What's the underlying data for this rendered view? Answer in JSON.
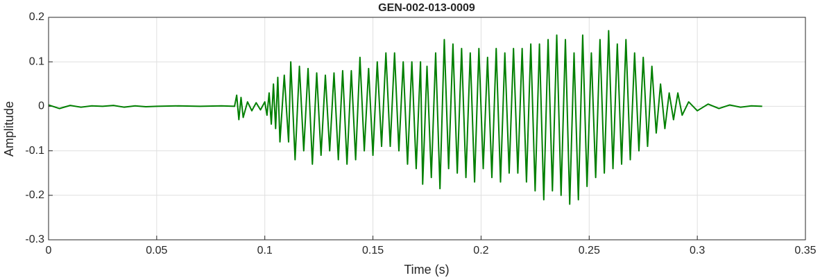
{
  "chart_data": {
    "type": "line",
    "title": "GEN-002-013-0009",
    "xlabel": "Time (s)",
    "ylabel": "Amplitude",
    "color": "#007f00",
    "grid": true,
    "xlim": [
      0,
      0.35
    ],
    "ylim": [
      -0.3,
      0.2
    ],
    "xticks": [
      0,
      0.05,
      0.1,
      0.15,
      0.2,
      0.25,
      0.3,
      0.35
    ],
    "yticks": [
      -0.3,
      -0.2,
      -0.1,
      0,
      0.1,
      0.2
    ],
    "x": [
      0,
      0.005,
      0.01,
      0.015,
      0.02,
      0.025,
      0.03,
      0.035,
      0.04,
      0.045,
      0.05,
      0.06,
      0.07,
      0.08,
      0.086,
      0.087,
      0.088,
      0.089,
      0.09,
      0.092,
      0.094,
      0.096,
      0.098,
      0.1,
      0.101,
      0.102,
      0.103,
      0.104,
      0.105,
      0.106,
      0.107,
      0.109,
      0.111,
      0.112,
      0.114,
      0.116,
      0.118,
      0.12,
      0.122,
      0.124,
      0.126,
      0.128,
      0.13,
      0.132,
      0.134,
      0.136,
      0.138,
      0.14,
      0.142,
      0.144,
      0.146,
      0.148,
      0.15,
      0.152,
      0.154,
      0.156,
      0.158,
      0.16,
      0.162,
      0.164,
      0.166,
      0.168,
      0.17,
      0.172,
      0.173,
      0.175,
      0.177,
      0.179,
      0.181,
      0.183,
      0.185,
      0.187,
      0.189,
      0.191,
      0.193,
      0.195,
      0.197,
      0.199,
      0.201,
      0.203,
      0.205,
      0.207,
      0.209,
      0.211,
      0.213,
      0.215,
      0.217,
      0.219,
      0.221,
      0.223,
      0.225,
      0.227,
      0.229,
      0.231,
      0.233,
      0.235,
      0.237,
      0.239,
      0.241,
      0.243,
      0.245,
      0.247,
      0.249,
      0.251,
      0.253,
      0.255,
      0.257,
      0.259,
      0.261,
      0.263,
      0.265,
      0.267,
      0.269,
      0.271,
      0.273,
      0.275,
      0.277,
      0.279,
      0.281,
      0.283,
      0.285,
      0.287,
      0.289,
      0.291,
      0.293,
      0.296,
      0.3,
      0.305,
      0.31,
      0.315,
      0.32,
      0.325,
      0.33
    ],
    "values": [
      0.003,
      -0.005,
      0.002,
      -0.002,
      0.001,
      0,
      0.002,
      -0.002,
      0.001,
      -0.001,
      0,
      0.001,
      0,
      0.001,
      0,
      0.025,
      -0.03,
      0.02,
      -0.025,
      0.01,
      -0.01,
      0.008,
      -0.008,
      0.01,
      -0.02,
      0.03,
      -0.04,
      0.05,
      -0.05,
      0.065,
      -0.08,
      0.07,
      -0.08,
      0.1,
      -0.12,
      0.09,
      -0.1,
      0.085,
      -0.13,
      0.075,
      -0.11,
      0.07,
      -0.1,
      0.075,
      -0.12,
      0.08,
      -0.13,
      0.08,
      -0.12,
      0.11,
      -0.1,
      0.085,
      -0.11,
      0.1,
      -0.09,
      0.12,
      -0.09,
      0.12,
      -0.1,
      0.1,
      -0.13,
      0.1,
      -0.14,
      0.1,
      -0.175,
      0.09,
      -0.16,
      0.12,
      -0.185,
      0.15,
      -0.14,
      0.14,
      -0.15,
      0.13,
      -0.16,
      0.12,
      -0.17,
      0.13,
      -0.14,
      0.11,
      -0.16,
      0.13,
      -0.17,
      0.12,
      -0.15,
      0.13,
      -0.15,
      0.13,
      -0.17,
      0.14,
      -0.19,
      0.14,
      -0.21,
      0.15,
      -0.19,
      0.16,
      -0.2,
      0.15,
      -0.22,
      0.12,
      -0.21,
      0.16,
      -0.18,
      0.12,
      -0.16,
      0.15,
      -0.15,
      0.17,
      -0.14,
      0.14,
      -0.13,
      0.15,
      -0.12,
      0.12,
      -0.1,
      0.11,
      -0.09,
      0.09,
      -0.06,
      0.05,
      -0.05,
      0.03,
      -0.03,
      0.03,
      -0.02,
      0.01,
      -0.01,
      0.005,
      -0.005,
      0.003,
      -0.002,
      0.001,
      0
    ]
  }
}
